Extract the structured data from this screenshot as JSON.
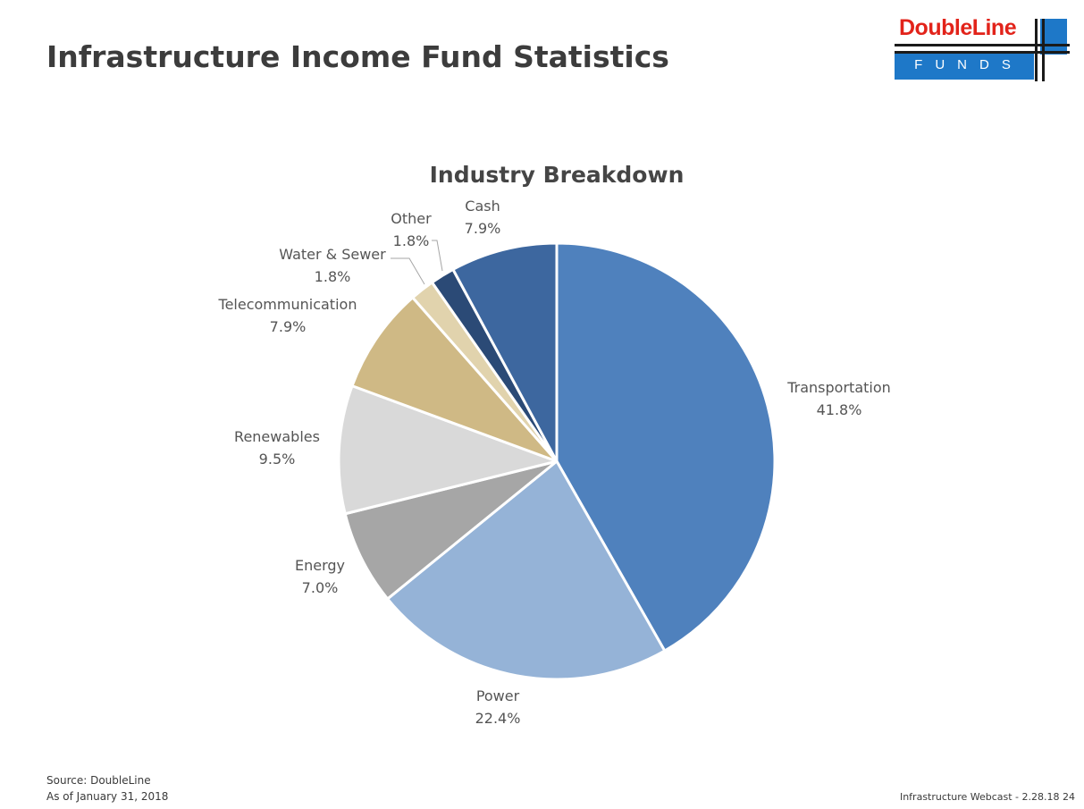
{
  "slide": {
    "title": "Infrastructure Income Fund Statistics",
    "logo": {
      "name": "DoubleLine",
      "tagline": "FUNDS",
      "colors": {
        "name": "#e2231a",
        "bar": "#1e78c8",
        "lines": "#1a1a1a"
      }
    }
  },
  "chart_data": {
    "type": "pie",
    "title": "Industry Breakdown",
    "start": "12 o'clock",
    "direction": "clockwise",
    "slices": [
      {
        "label": "Transportation",
        "value": 41.8,
        "display": "41.8%",
        "color": "#4f81bd"
      },
      {
        "label": "Power",
        "value": 22.4,
        "display": "22.4%",
        "color": "#95b3d7"
      },
      {
        "label": "Energy",
        "value": 7.0,
        "display": "7.0%",
        "color": "#a6a6a6"
      },
      {
        "label": "Renewables",
        "value": 9.5,
        "display": "9.5%",
        "color": "#d9d9d9"
      },
      {
        "label": "Telecommunication",
        "value": 7.9,
        "display": "7.9%",
        "color": "#cfb985"
      },
      {
        "label": "Water & Sewer",
        "value": 1.8,
        "display": "1.8%",
        "color": "#e1d3ad"
      },
      {
        "label": "Other",
        "value": 1.8,
        "display": "1.8%",
        "color": "#2b4a76"
      },
      {
        "label": "Cash",
        "value": 7.9,
        "display": "7.9%",
        "color": "#3d679f"
      }
    ]
  },
  "footer": {
    "source": "Source: DoubleLine",
    "as_of": "As of January 31, 2018",
    "page_note": "Infrastructure Webcast - 2.28.18  24"
  }
}
